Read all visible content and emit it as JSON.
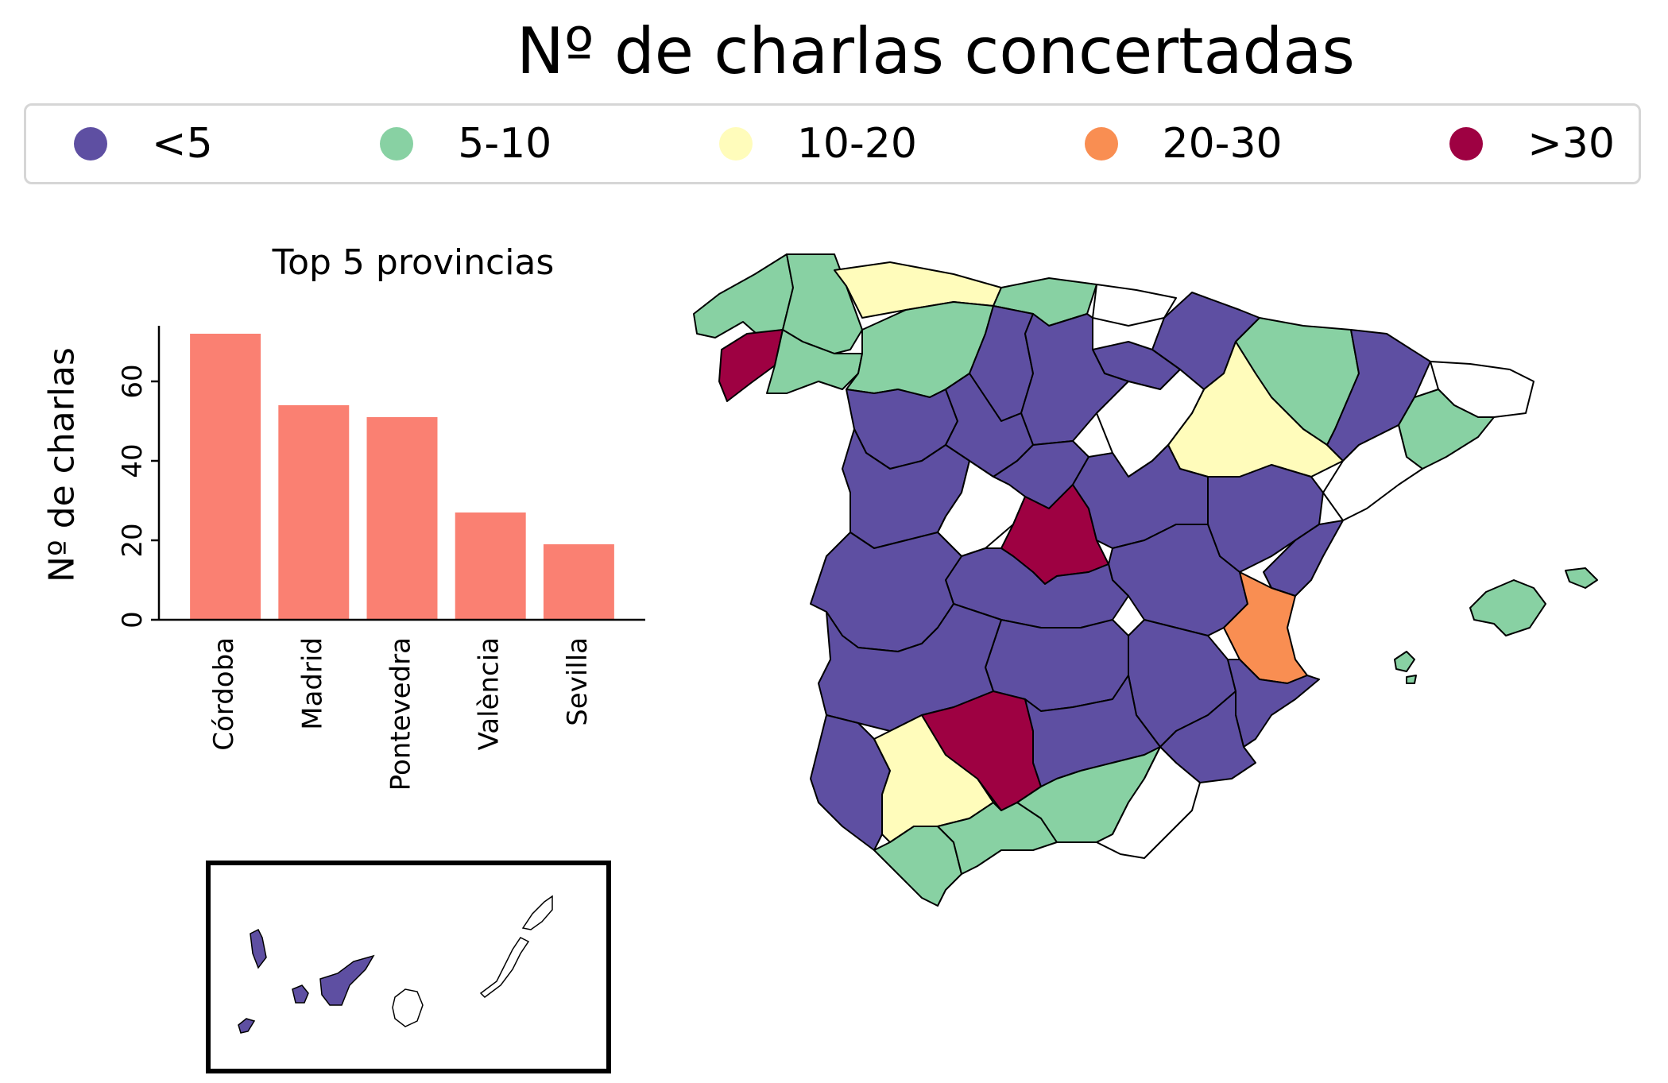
{
  "title": "Nº de charlas concertadas",
  "legend": [
    {
      "label": "<5",
      "color": "#5e4fa2"
    },
    {
      "label": "5-10",
      "color": "#88d1a3"
    },
    {
      "label": "10-20",
      "color": "#fffcbb"
    },
    {
      "label": "20-30",
      "color": "#f98e52"
    },
    {
      "label": ">30",
      "color": "#9e0142"
    }
  ],
  "chart_data": {
    "type": "bar",
    "title": "Top 5 provincias",
    "ylabel": "Nº de charlas",
    "xlabel": "",
    "categories": [
      "Córdoba",
      "Madrid",
      "Pontevedra",
      "València",
      "Sevilla"
    ],
    "values": [
      72,
      54,
      51,
      27,
      19
    ],
    "ylim": [
      0,
      74
    ],
    "yticks": [
      0,
      20,
      40,
      60
    ],
    "bar_color": "#fa8072",
    "grid": false
  },
  "map": {
    "inset": "Canary Islands",
    "no_data_color": "#ffffff"
  }
}
